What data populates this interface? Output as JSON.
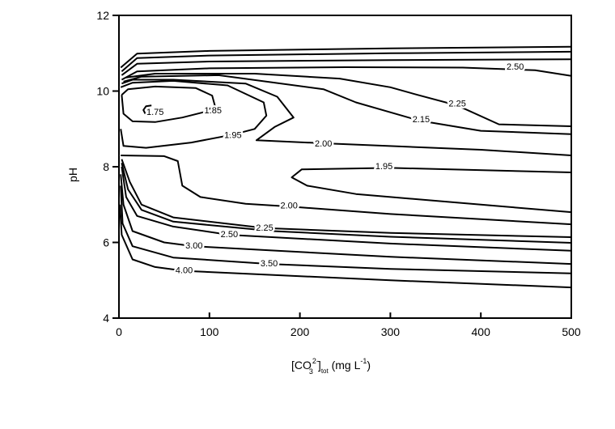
{
  "chart_data": {
    "type": "contour",
    "title": "",
    "xlabel": {
      "main": "[CO",
      "sub3": "3",
      "sup": "2-",
      "subtot": "tot",
      "unit": " (mg L",
      "unit_sup": "-1",
      "close": ")"
    },
    "ylabel": "pH",
    "xlim": [
      0,
      500
    ],
    "ylim": [
      4,
      12
    ],
    "xticks": [
      0,
      100,
      200,
      300,
      400,
      500
    ],
    "yticks": [
      4,
      6,
      8,
      10,
      12
    ],
    "grid": false,
    "line_color": "#000000",
    "contours": [
      {
        "label": "1.75",
        "label_at": [
          40,
          9.45
        ],
        "points": [
          [
            36,
            9.62
          ],
          [
            30,
            9.6
          ],
          [
            27,
            9.5
          ],
          [
            29,
            9.41
          ],
          [
            36,
            9.38
          ]
        ]
      },
      {
        "label": "1.85",
        "label_at": [
          104,
          9.5
        ],
        "points": [
          [
            3,
            9.9
          ],
          [
            10,
            10.05
          ],
          [
            40,
            10.12
          ],
          [
            85,
            10.08
          ],
          [
            103,
            9.88
          ],
          [
            106,
            9.62
          ],
          [
            95,
            9.45
          ],
          [
            70,
            9.3
          ],
          [
            40,
            9.18
          ],
          [
            15,
            9.2
          ],
          [
            5,
            9.4
          ],
          [
            3,
            9.9
          ]
        ]
      },
      {
        "label": "1.95",
        "label_at": [
          126,
          8.84
        ],
        "points": [
          [
            2,
            10.1
          ],
          [
            15,
            10.22
          ],
          [
            60,
            10.27
          ],
          [
            120,
            10.15
          ],
          [
            160,
            9.7
          ],
          [
            163,
            9.35
          ],
          [
            150,
            9.0
          ],
          [
            126,
            8.85
          ],
          [
            80,
            8.64
          ],
          [
            30,
            8.5
          ],
          [
            5,
            8.55
          ],
          [
            2,
            9.0
          ]
        ]
      },
      {
        "label": "2.00",
        "label_at": [
          226,
          8.62
        ],
        "points": [
          [
            500,
            8.3
          ],
          [
            400,
            8.45
          ],
          [
            226,
            8.62
          ],
          [
            152,
            8.7
          ],
          [
            172,
            9.05
          ],
          [
            193,
            9.3
          ],
          [
            175,
            9.85
          ],
          [
            140,
            10.2
          ],
          [
            60,
            10.3
          ],
          [
            15,
            10.3
          ],
          [
            3,
            10.2
          ]
        ]
      },
      {
        "label": "2.15",
        "label_at": [
          334,
          9.26
        ],
        "points": [
          [
            500,
            8.86
          ],
          [
            400,
            8.95
          ],
          [
            332,
            9.22
          ],
          [
            262,
            9.7
          ],
          [
            226,
            10.05
          ],
          [
            110,
            10.42
          ],
          [
            25,
            10.38
          ],
          [
            5,
            10.25
          ]
        ]
      },
      {
        "label": "2.25",
        "label_at": [
          374,
          9.68
        ],
        "points": [
          [
            500,
            9.07
          ],
          [
            420,
            9.12
          ],
          [
            374,
            9.62
          ],
          [
            330,
            9.9
          ],
          [
            300,
            10.1
          ],
          [
            244,
            10.33
          ],
          [
            150,
            10.46
          ],
          [
            40,
            10.46
          ],
          [
            8,
            10.36
          ]
        ]
      },
      {
        "label": "2.50",
        "label_at": [
          438,
          10.65
        ],
        "points": [
          [
            500,
            10.4
          ],
          [
            460,
            10.55
          ],
          [
            380,
            10.62
          ],
          [
            250,
            10.63
          ],
          [
            100,
            10.6
          ],
          [
            20,
            10.52
          ],
          [
            3,
            10.3
          ]
        ]
      },
      {
        "label": "",
        "points": [
          [
            500,
            10.84
          ],
          [
            300,
            10.82
          ],
          [
            100,
            10.78
          ],
          [
            20,
            10.72
          ],
          [
            3,
            10.42
          ]
        ]
      },
      {
        "label": "",
        "points": [
          [
            500,
            11.04
          ],
          [
            300,
            11.0
          ],
          [
            100,
            10.94
          ],
          [
            20,
            10.87
          ],
          [
            3,
            10.52
          ]
        ]
      },
      {
        "label": "",
        "points": [
          [
            500,
            11.17
          ],
          [
            300,
            11.13
          ],
          [
            100,
            11.06
          ],
          [
            20,
            10.99
          ],
          [
            2,
            10.62
          ]
        ]
      },
      {
        "label": "1.95",
        "label_at": [
          293,
          8.02
        ],
        "points": [
          [
            500,
            7.85
          ],
          [
            300,
            7.97
          ],
          [
            202,
            7.93
          ],
          [
            191,
            7.72
          ],
          [
            208,
            7.5
          ],
          [
            262,
            7.28
          ],
          [
            400,
            7.0
          ],
          [
            500,
            6.8
          ]
        ]
      },
      {
        "label": "2.00",
        "label_at": [
          188,
          6.98
        ],
        "points": [
          [
            2,
            8.3
          ],
          [
            50,
            8.28
          ],
          [
            65,
            8.15
          ],
          [
            70,
            7.5
          ],
          [
            90,
            7.2
          ],
          [
            140,
            7.02
          ],
          [
            188,
            6.95
          ],
          [
            300,
            6.75
          ],
          [
            500,
            6.48
          ]
        ]
      },
      {
        "label": "2.25",
        "label_at": [
          161,
          6.4
        ],
        "points": [
          [
            3,
            8.2
          ],
          [
            12,
            7.6
          ],
          [
            25,
            7.0
          ],
          [
            60,
            6.66
          ],
          [
            161,
            6.38
          ],
          [
            300,
            6.25
          ],
          [
            500,
            6.14
          ]
        ]
      },
      {
        "label": "",
        "points": [
          [
            3,
            8.1
          ],
          [
            10,
            7.4
          ],
          [
            25,
            6.86
          ],
          [
            60,
            6.55
          ],
          [
            170,
            6.3
          ],
          [
            300,
            6.15
          ],
          [
            500,
            5.99
          ]
        ]
      },
      {
        "label": "2.50",
        "label_at": [
          122,
          6.22
        ],
        "points": [
          [
            3,
            8.0
          ],
          [
            8,
            7.2
          ],
          [
            20,
            6.7
          ],
          [
            60,
            6.42
          ],
          [
            122,
            6.2
          ],
          [
            300,
            5.97
          ],
          [
            500,
            5.78
          ]
        ]
      },
      {
        "label": "3.00",
        "label_at": [
          83,
          5.92
        ],
        "points": [
          [
            2,
            7.8
          ],
          [
            5,
            7.0
          ],
          [
            15,
            6.3
          ],
          [
            50,
            6.0
          ],
          [
            83,
            5.9
          ],
          [
            300,
            5.62
          ],
          [
            500,
            5.43
          ]
        ]
      },
      {
        "label": "3.50",
        "label_at": [
          166,
          5.45
        ],
        "points": [
          [
            2,
            7.5
          ],
          [
            4,
            6.5
          ],
          [
            15,
            5.9
          ],
          [
            60,
            5.6
          ],
          [
            166,
            5.43
          ],
          [
            300,
            5.3
          ],
          [
            500,
            5.18
          ]
        ]
      },
      {
        "label": "4.00",
        "label_at": [
          72,
          5.27
        ],
        "points": [
          [
            1,
            7.0
          ],
          [
            3,
            6.2
          ],
          [
            15,
            5.55
          ],
          [
            40,
            5.35
          ],
          [
            72,
            5.25
          ],
          [
            300,
            5.0
          ],
          [
            500,
            4.81
          ]
        ]
      }
    ]
  }
}
